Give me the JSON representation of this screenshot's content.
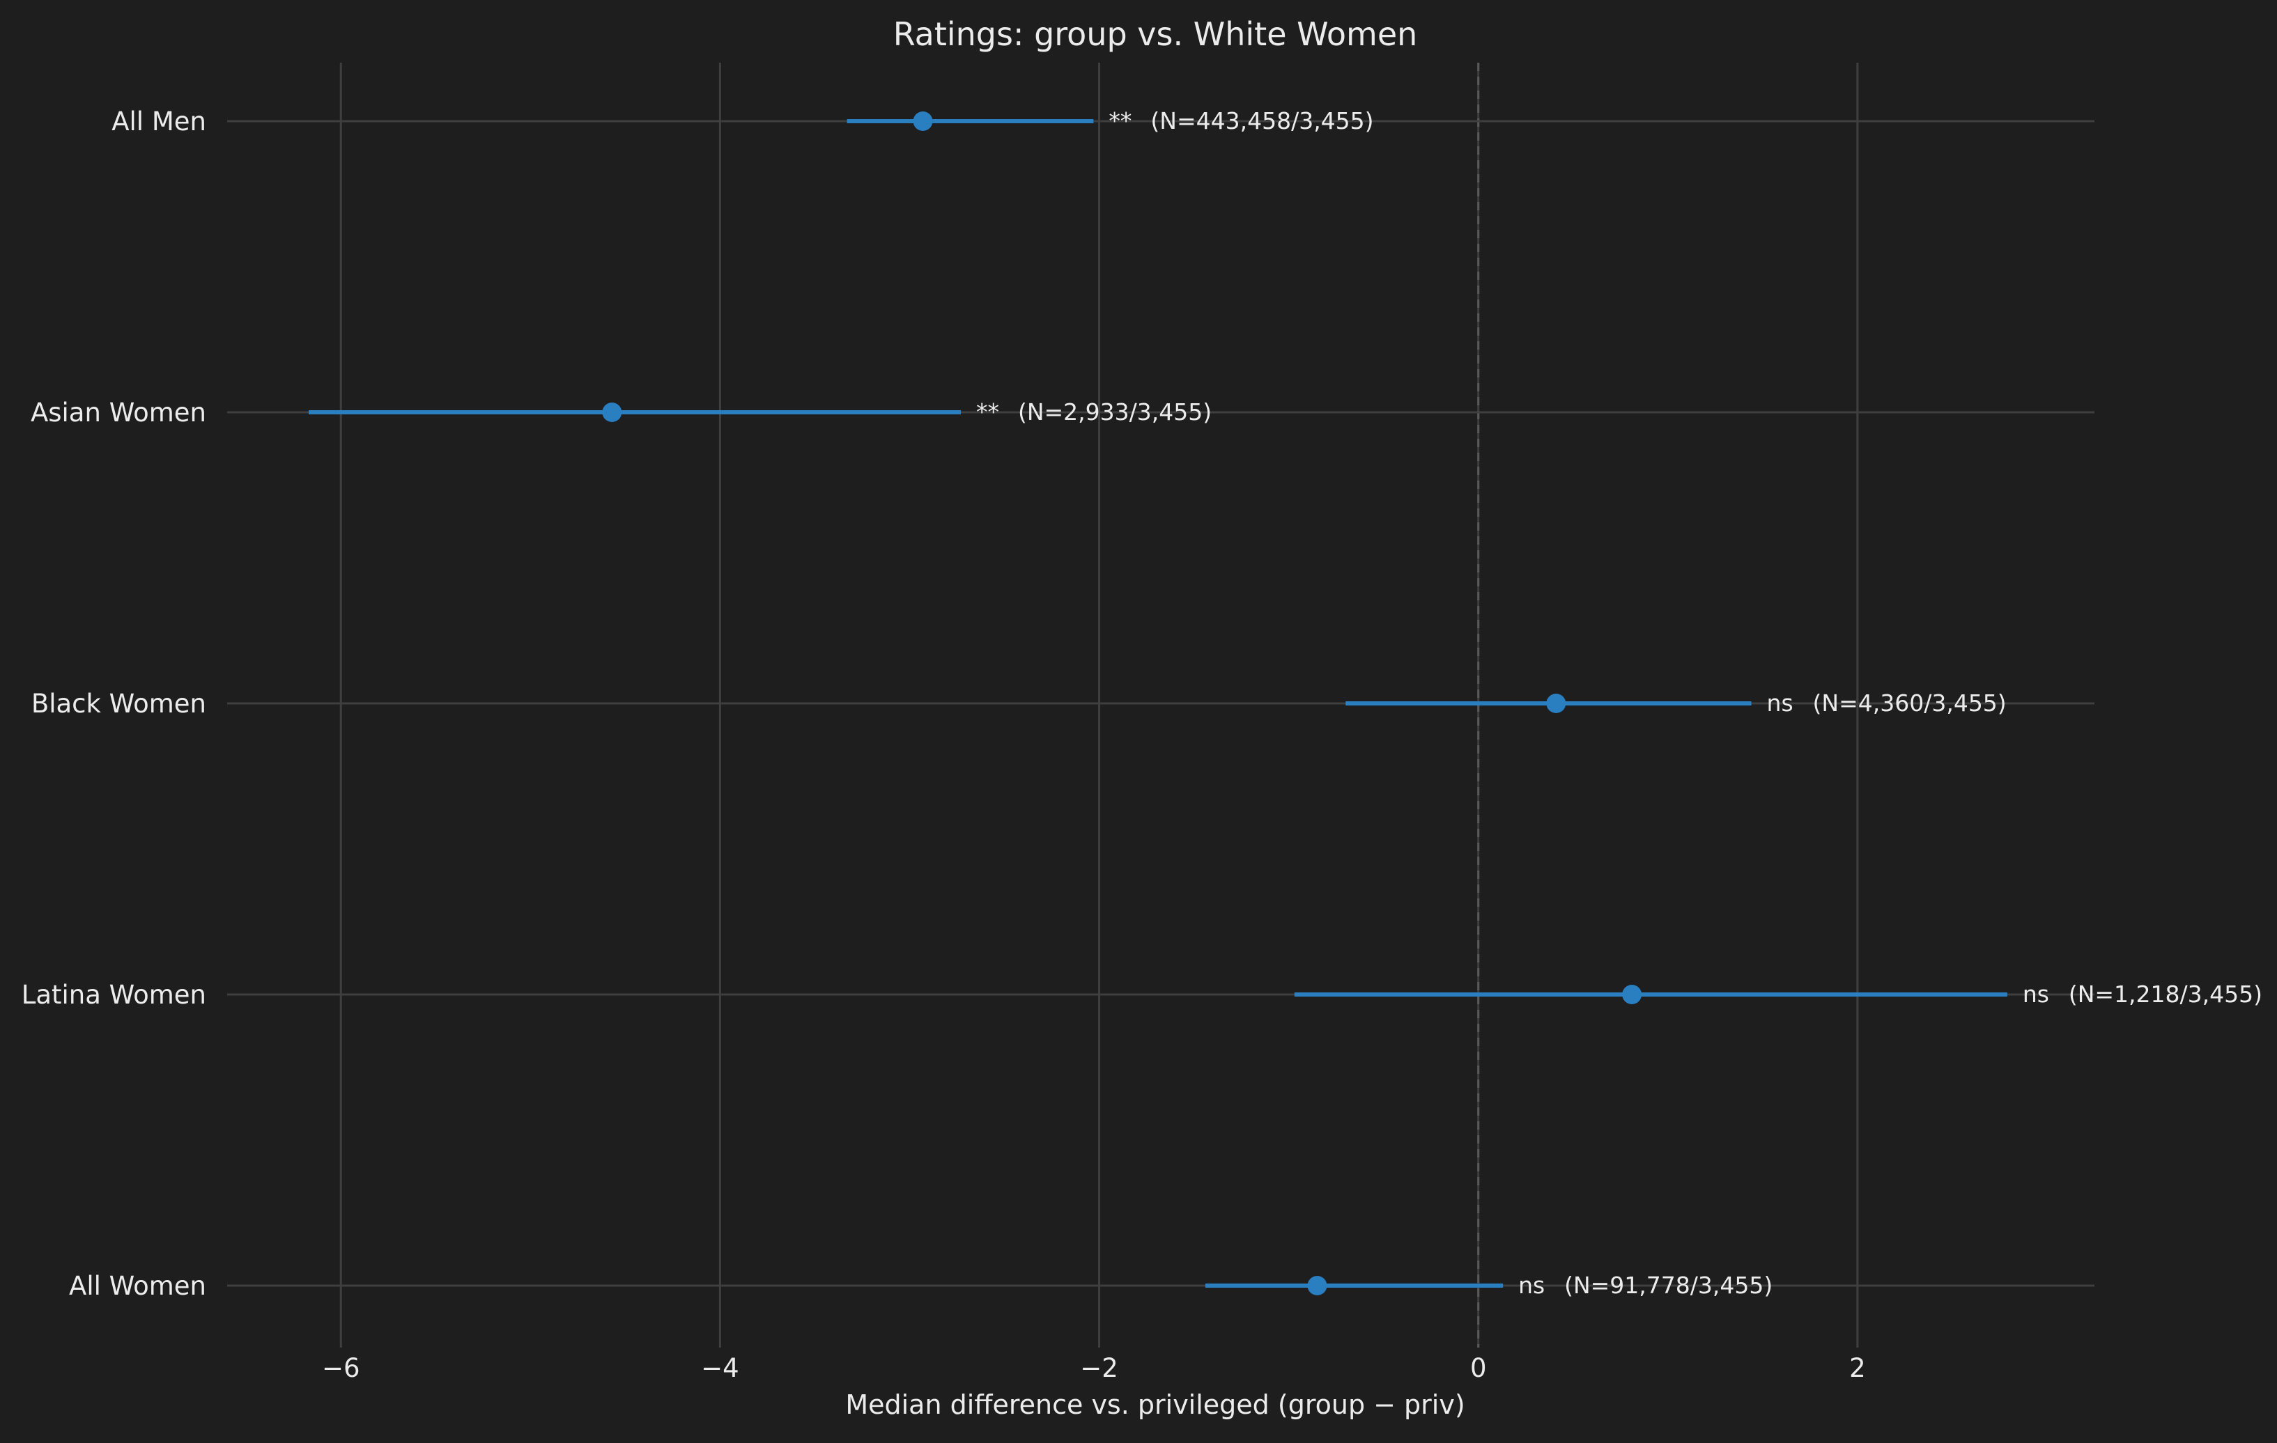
{
  "chart_data": {
    "type": "forest",
    "title": "Ratings: group vs. White Women",
    "xlabel": "Median difference vs. privileged (group − priv)",
    "ylabel": "",
    "xlim": [
      -6.6,
      3.25
    ],
    "xticks": [
      -6,
      -4,
      -2,
      0,
      2
    ],
    "xtick_labels": [
      "−6",
      "−4",
      "−2",
      "0",
      "2"
    ],
    "grid": true,
    "reference_line_x": 0,
    "categories": [
      "All Men",
      "Asian Women",
      "Black Women",
      "Latina Women",
      "All Women"
    ],
    "series": [
      {
        "points": [
          {
            "group": "All Men",
            "median_diff": -2.93,
            "ci_low": -3.33,
            "ci_high": -2.03,
            "significance": "**",
            "n_label": "(N=443,458/3,455)"
          },
          {
            "group": "Asian Women",
            "median_diff": -4.57,
            "ci_low": -6.17,
            "ci_high": -2.73,
            "significance": "**",
            "n_label": "(N=2,933/3,455)"
          },
          {
            "group": "Black Women",
            "median_diff": 0.41,
            "ci_low": -0.7,
            "ci_high": 1.44,
            "significance": "ns",
            "n_label": "(N=4,360/3,455)"
          },
          {
            "group": "Latina Women",
            "median_diff": 0.81,
            "ci_low": -0.97,
            "ci_high": 2.79,
            "significance": "ns",
            "n_label": "(N=1,218/3,455)"
          },
          {
            "group": "All Women",
            "median_diff": -0.85,
            "ci_low": -1.44,
            "ci_high": 0.13,
            "significance": "ns",
            "n_label": "(N=91,778/3,455)"
          }
        ]
      }
    ],
    "colors": {
      "background": "#1e1e1e",
      "grid": "#3f3f3f",
      "marker": "#2a7fc1",
      "text": "#ececec",
      "reference_line": "#5a5a5a"
    }
  }
}
